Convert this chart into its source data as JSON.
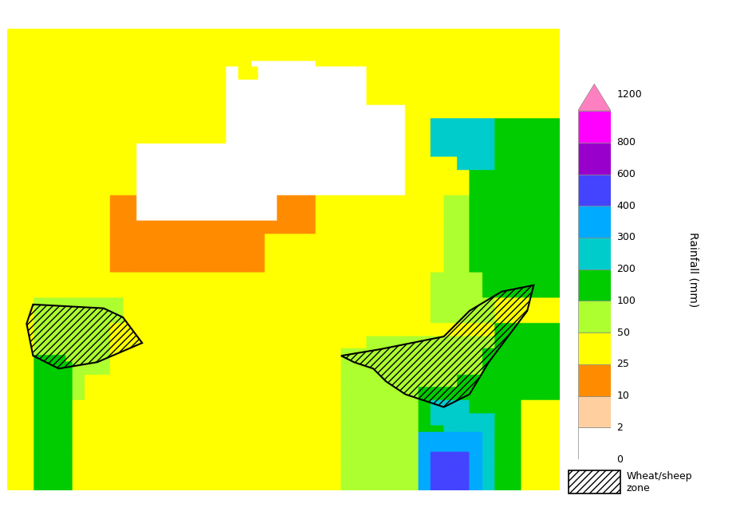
{
  "title": "",
  "colorbar_levels": [
    0,
    2,
    10,
    25,
    50,
    100,
    200,
    300,
    400,
    600,
    800,
    1200
  ],
  "colorbar_colors": [
    "#FFFFFF",
    "#FFCFA0",
    "#FF8C00",
    "#FFFF00",
    "#ADFF2F",
    "#00CC00",
    "#00CCCC",
    "#00AAFF",
    "#4444FF",
    "#9900CC",
    "#FF00FF",
    "#FF80C0"
  ],
  "colorbar_label": "Rainfall (mm)",
  "colorbar_tick_labels": [
    "0",
    "2",
    "10",
    "25",
    "50",
    "100",
    "200",
    "300",
    "400",
    "600",
    "800",
    "1200"
  ],
  "legend_patch_label": "Wheat/sheep\nzone",
  "background_color": "#FFFFFF",
  "figsize": [
    9.23,
    6.51
  ],
  "dpi": 100,
  "lon_min": 112,
  "lon_max": 155,
  "lat_min": -45,
  "lat_max": -9
}
